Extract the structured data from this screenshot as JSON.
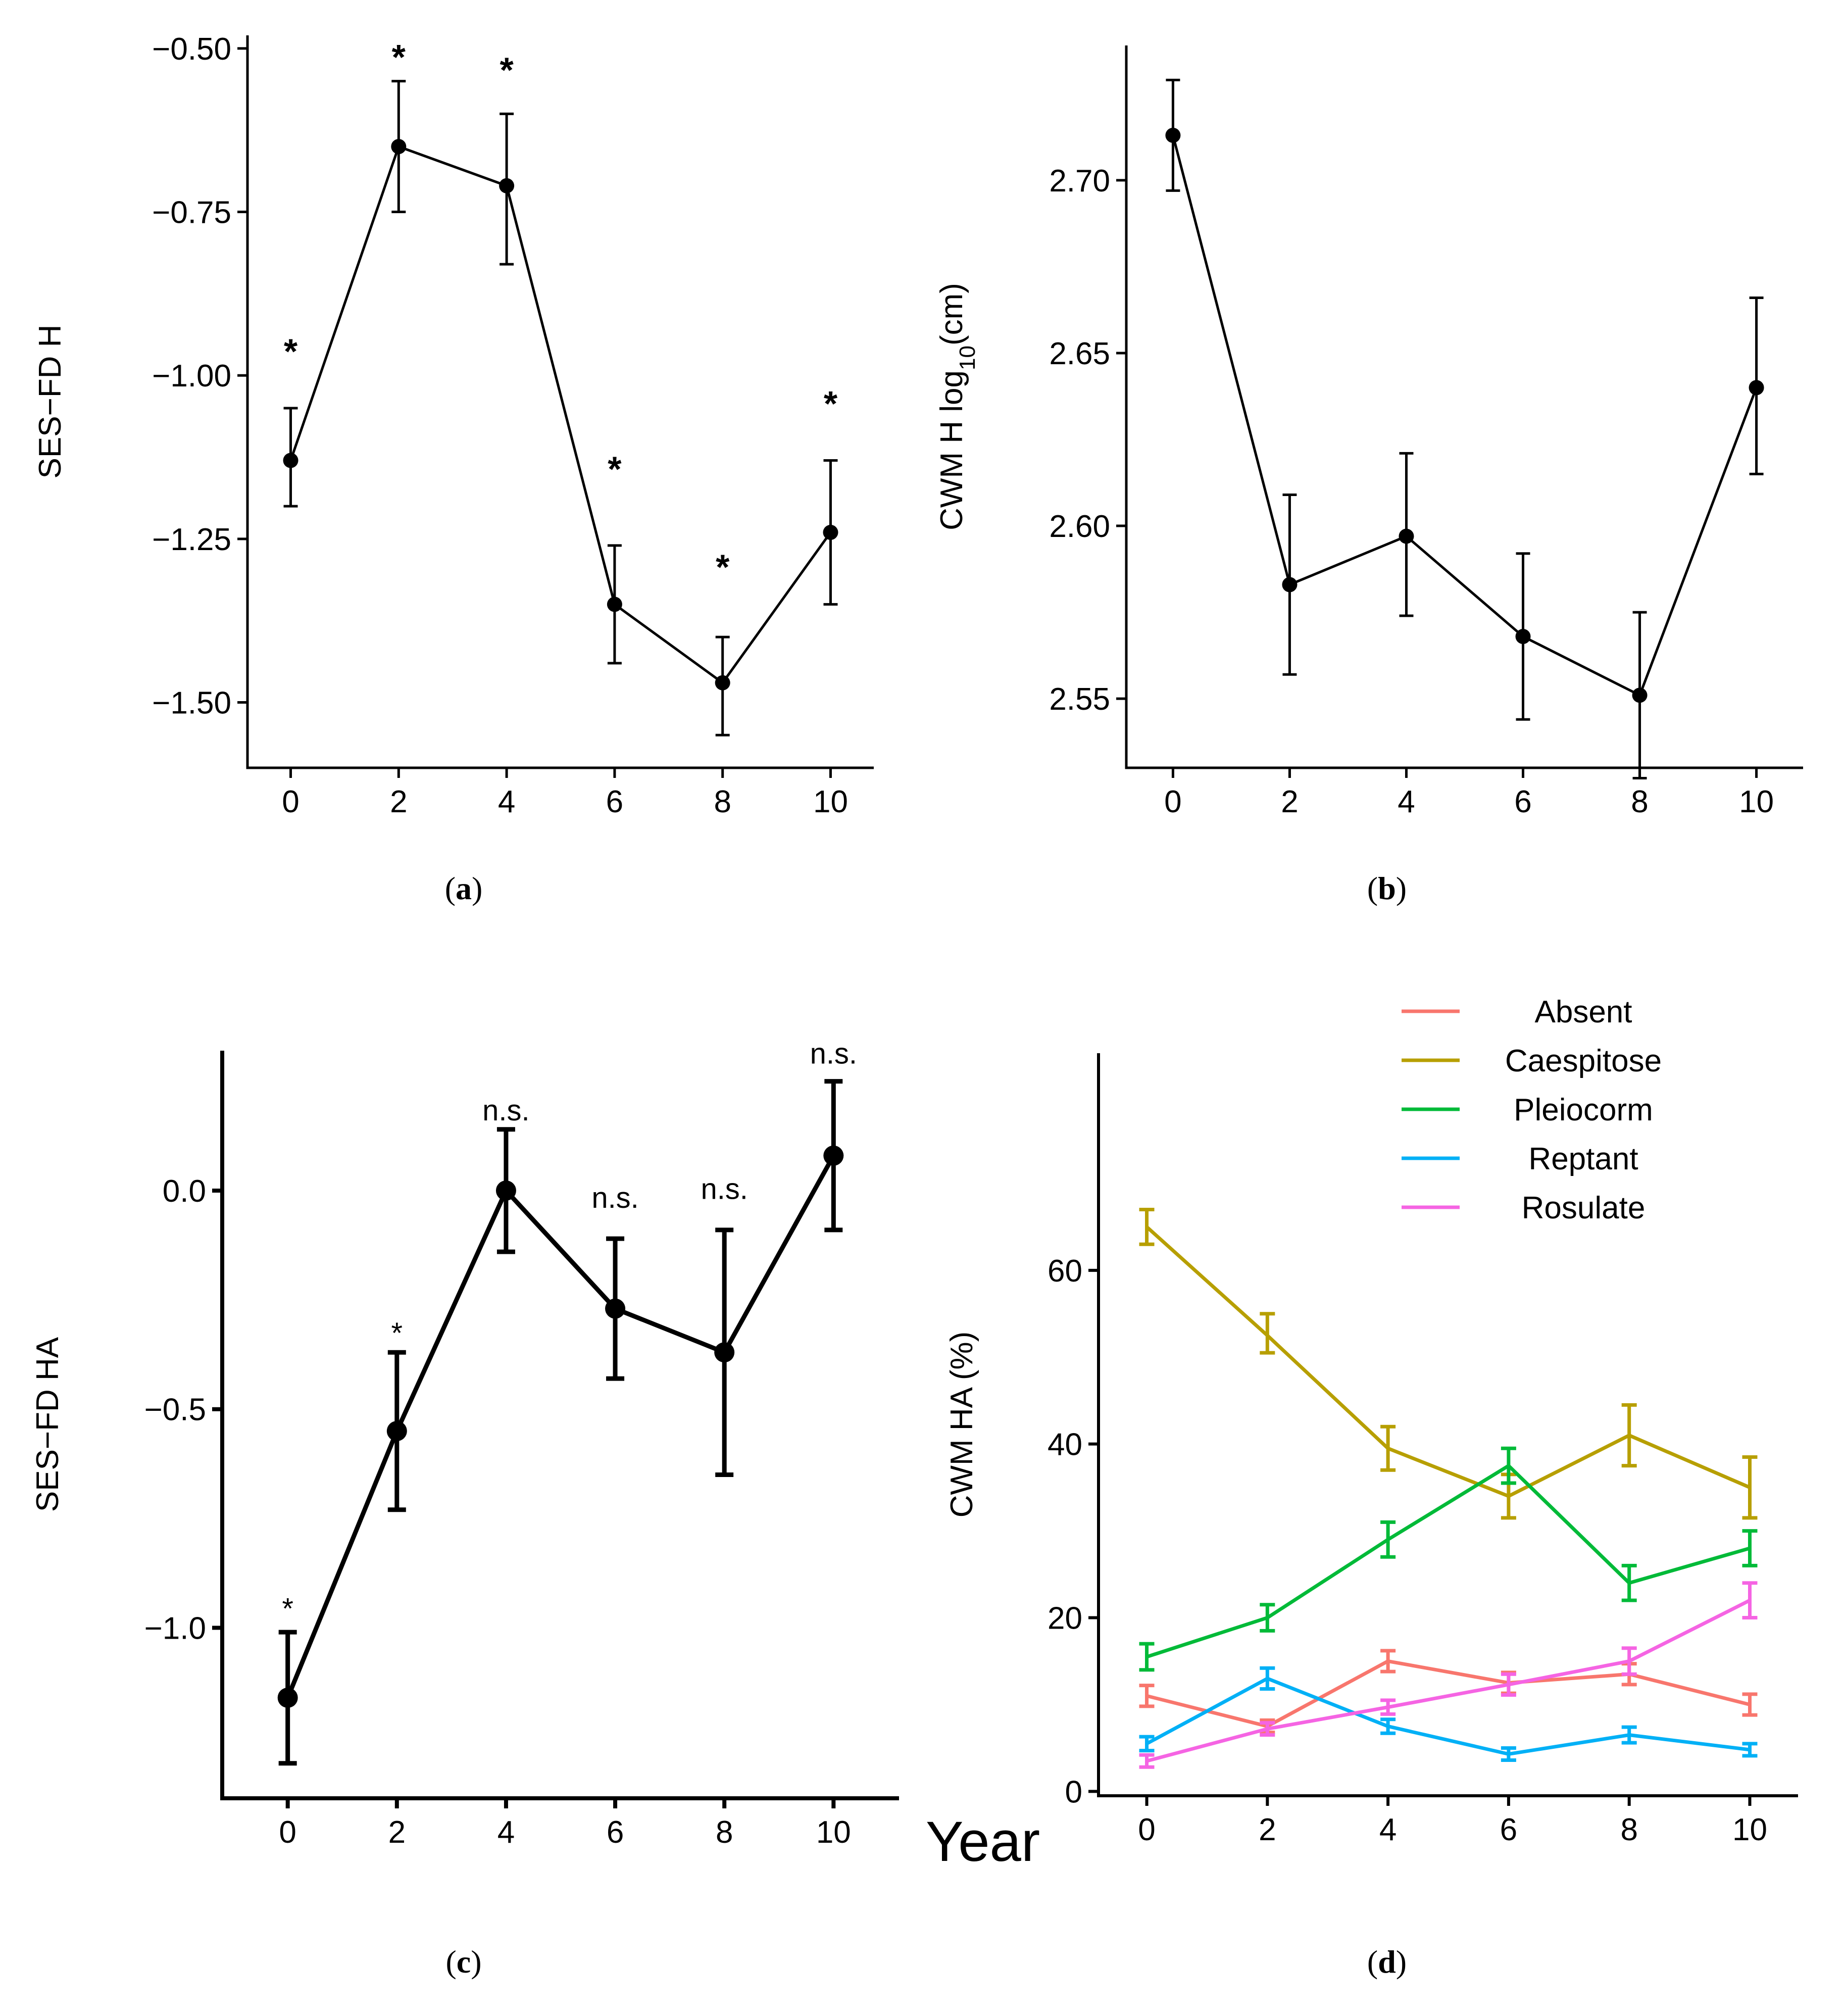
{
  "figure_xlabel": "Year",
  "chart_data": [
    {
      "id": "a",
      "type": "line",
      "caption_letter": "a",
      "caption": "(a)",
      "ylabel": "SES−FD H",
      "xlabel": "",
      "x": [
        0,
        2,
        4,
        6,
        8,
        10
      ],
      "xticks": [
        "0",
        "2",
        "4",
        "6",
        "8",
        "10"
      ],
      "xlim": [
        -0.8,
        10.8
      ],
      "ylim": [
        -1.6,
        -0.48
      ],
      "yticks": [
        -1.5,
        -1.25,
        -1.0,
        -0.75,
        -0.5
      ],
      "yticklabels": [
        "−1.50",
        "−1.25",
        "−1.00",
        "−0.75",
        "−0.50"
      ],
      "series": [
        {
          "name": "SES-FD H",
          "color": "#000000",
          "values": [
            -1.13,
            -0.65,
            -0.71,
            -1.35,
            -1.47,
            -1.24
          ],
          "err_low": [
            -1.2,
            -0.75,
            -0.83,
            -1.44,
            -1.55,
            -1.35
          ],
          "err_high": [
            -1.05,
            -0.55,
            -0.6,
            -1.26,
            -1.4,
            -1.13
          ],
          "sig_labels": [
            "*",
            "*",
            "*",
            "*",
            "*",
            "*"
          ],
          "sig_y": [
            -0.96,
            -0.51,
            -0.53,
            -1.14,
            -1.29,
            -1.04
          ]
        }
      ],
      "grid": false
    },
    {
      "id": "b",
      "type": "line",
      "caption_letter": "b",
      "caption": "(b)",
      "ylabel": "CWM H log",
      "ylabel_sub": "10",
      "ylabel_unit": "(cm)",
      "xlabel": "",
      "x": [
        0,
        2,
        4,
        6,
        8,
        10
      ],
      "xticks": [
        "0",
        "2",
        "4",
        "6",
        "8",
        "10"
      ],
      "xlim": [
        -0.8,
        10.8
      ],
      "ylim": [
        2.53,
        2.739
      ],
      "yticks": [
        2.55,
        2.6,
        2.65,
        2.7
      ],
      "yticklabels": [
        "2.55",
        "2.60",
        "2.65",
        "2.70"
      ],
      "series": [
        {
          "name": "CWM H",
          "color": "#000000",
          "values": [
            2.713,
            2.583,
            2.597,
            2.568,
            2.551,
            2.64
          ],
          "err_low": [
            2.697,
            2.557,
            2.574,
            2.544,
            2.527,
            2.615
          ],
          "err_high": [
            2.729,
            2.609,
            2.621,
            2.592,
            2.575,
            2.666
          ]
        }
      ],
      "grid": false
    },
    {
      "id": "c",
      "type": "line",
      "caption_letter": "c",
      "caption": "(c)",
      "ylabel": "SES−FD HA",
      "xlabel": "Year",
      "x": [
        0,
        2,
        4,
        6,
        8,
        10
      ],
      "xticks": [
        "0",
        "2",
        "4",
        "6",
        "8",
        "10"
      ],
      "xlim": [
        -1.2,
        11.2
      ],
      "ylim": [
        -1.39,
        0.32
      ],
      "yticks": [
        -1.0,
        -0.5,
        0.0
      ],
      "yticklabels": [
        "−1.0",
        "−0.5",
        "0.0"
      ],
      "series": [
        {
          "name": "SES-FD HA",
          "color": "#000000",
          "values": [
            -1.16,
            -0.55,
            0.0,
            -0.27,
            -0.37,
            0.08
          ],
          "err_low": [
            -1.31,
            -0.73,
            -0.14,
            -0.43,
            -0.65,
            -0.09
          ],
          "err_high": [
            -1.01,
            -0.37,
            0.14,
            -0.11,
            -0.09,
            0.25
          ],
          "sig_labels": [
            "*",
            "*",
            "n.s.",
            "n.s.",
            "n.s.",
            "n.s."
          ],
          "sig_y": [
            -1.0,
            -0.37,
            0.14,
            -0.06,
            -0.04,
            0.27
          ]
        }
      ],
      "grid": false
    },
    {
      "id": "d",
      "type": "line",
      "caption_letter": "d",
      "caption": "(d)",
      "ylabel": "CWM HA (%)",
      "xlabel": "",
      "x": [
        0,
        2,
        4,
        6,
        8,
        10
      ],
      "xticks": [
        "0",
        "2",
        "4",
        "6",
        "8",
        "10"
      ],
      "xlim": [
        -0.8,
        10.8
      ],
      "ylim": [
        -0.5,
        85
      ],
      "yticks": [
        0,
        20,
        40,
        60
      ],
      "yticklabels": [
        "0",
        "20",
        "40",
        "60"
      ],
      "legend": "top-right",
      "series": [
        {
          "name": "Absent",
          "color": "#F8766D",
          "values": [
            11,
            7.5,
            15,
            12.5,
            13.5,
            10
          ],
          "err_low": [
            9.8,
            6.8,
            13.8,
            11.3,
            12.3,
            8.8
          ],
          "err_high": [
            12.2,
            8.2,
            16.2,
            13.7,
            14.7,
            11.2
          ]
        },
        {
          "name": "Caespitose",
          "color": "#B79F00",
          "values": [
            65,
            52.5,
            39.5,
            34,
            41,
            35
          ],
          "err_low": [
            63,
            50.5,
            37,
            31.5,
            37.5,
            31.5
          ],
          "err_high": [
            67,
            55,
            42,
            36.5,
            44.5,
            38.5
          ]
        },
        {
          "name": "Pleiocorm",
          "color": "#00BA38",
          "values": [
            15.5,
            20,
            29,
            37.5,
            24,
            28
          ],
          "err_low": [
            14,
            18.5,
            27,
            35.5,
            22,
            26
          ],
          "err_high": [
            17,
            21.5,
            31,
            39.5,
            26,
            30
          ]
        },
        {
          "name": "Reptant",
          "color": "#00B0F6",
          "values": [
            5.5,
            13,
            7.5,
            4.3,
            6.5,
            4.8
          ],
          "err_low": [
            4.7,
            11.8,
            6.7,
            3.6,
            5.6,
            4.1
          ],
          "err_high": [
            6.3,
            14.2,
            8.3,
            5,
            7.4,
            5.5
          ]
        },
        {
          "name": "Rosulate",
          "color": "#F564E3",
          "values": [
            3.5,
            7.2,
            9.7,
            12.3,
            15,
            22
          ],
          "err_low": [
            2.8,
            6.5,
            8.9,
            11.1,
            13.5,
            20
          ],
          "err_high": [
            4.2,
            7.9,
            10.5,
            13.5,
            16.5,
            24
          ]
        }
      ],
      "grid": false
    }
  ]
}
